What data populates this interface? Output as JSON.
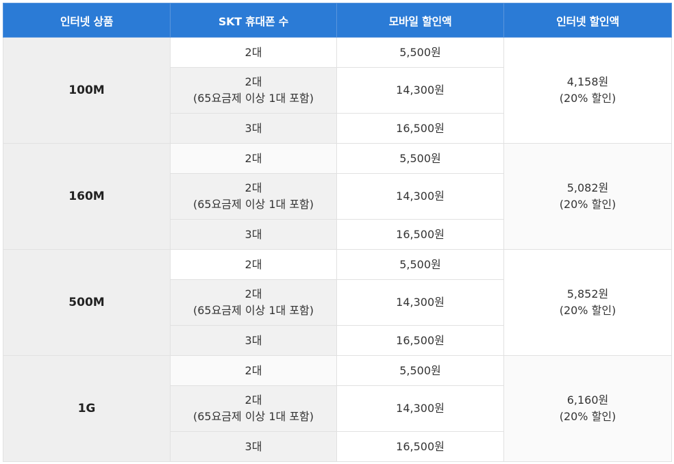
{
  "headers": [
    "인터넷 상품",
    "SKT 휴대폰 수",
    "모바일 할인액",
    "인터넷 할인액"
  ],
  "groups": [
    {
      "product": "100M",
      "rows": [
        {
          "phones": "2대",
          "phones_note": "",
          "mobile_discount": "5,500원"
        },
        {
          "phones": "2대",
          "phones_note": "(65요금제 이상 1대 포함)",
          "mobile_discount": "14,300원"
        },
        {
          "phones": "3대",
          "phones_note": "",
          "mobile_discount": "16,500원"
        }
      ],
      "internet_discount": "4,158원",
      "internet_discount_rate": "(20% 할인)"
    },
    {
      "product": "160M",
      "rows": [
        {
          "phones": "2대",
          "phones_note": "",
          "mobile_discount": "5,500원"
        },
        {
          "phones": "2대",
          "phones_note": "(65요금제 이상 1대 포함)",
          "mobile_discount": "14,300원"
        },
        {
          "phones": "3대",
          "phones_note": "",
          "mobile_discount": "16,500원"
        }
      ],
      "internet_discount": "5,082원",
      "internet_discount_rate": "(20% 할인)"
    },
    {
      "product": "500M",
      "rows": [
        {
          "phones": "2대",
          "phones_note": "",
          "mobile_discount": "5,500원"
        },
        {
          "phones": "2대",
          "phones_note": "(65요금제 이상 1대 포함)",
          "mobile_discount": "14,300원"
        },
        {
          "phones": "3대",
          "phones_note": "",
          "mobile_discount": "16,500원"
        }
      ],
      "internet_discount": "5,852원",
      "internet_discount_rate": "(20% 할인)"
    },
    {
      "product": "1G",
      "rows": [
        {
          "phones": "2대",
          "phones_note": "",
          "mobile_discount": "5,500원"
        },
        {
          "phones": "2대",
          "phones_note": "(65요금제 이상 1대 포함)",
          "mobile_discount": "14,300원"
        },
        {
          "phones": "3대",
          "phones_note": "",
          "mobile_discount": "16,500원"
        }
      ],
      "internet_discount": "6,160원",
      "internet_discount_rate": "(20% 할인)"
    }
  ]
}
